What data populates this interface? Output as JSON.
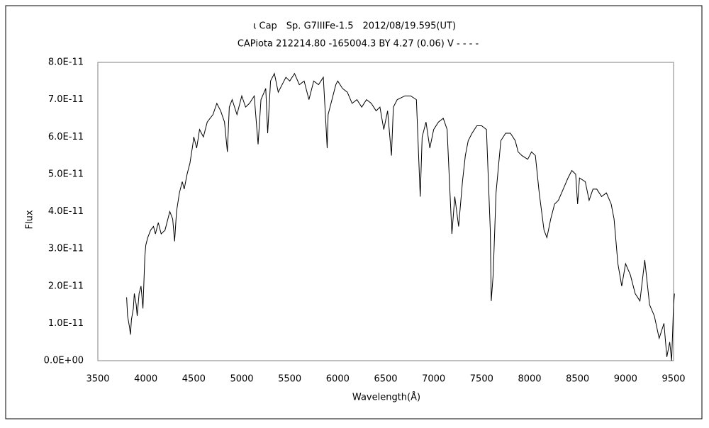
{
  "chart_data": {
    "type": "line",
    "title": "ι Cap　Sp. G7IIIFe-1.5　2012/08/19.595(UT)",
    "subtitle": "CAPiota 212214.80 -165004.3 BY 4.27 (0.06) V - - - -",
    "xlabel": "Wavelength(Å)",
    "ylabel": "Flux",
    "color": "#000000",
    "grid": false,
    "xlim": [
      3500,
      9500
    ],
    "xticks": [
      3500,
      4000,
      4500,
      5000,
      5500,
      6000,
      6500,
      7000,
      7500,
      8000,
      8500,
      9000,
      9500
    ],
    "ylim": [
      0,
      8e-11
    ],
    "yticks": [
      {
        "value": 0,
        "label": "0.0E+00"
      },
      {
        "value": 1e-11,
        "label": "1.0E-11"
      },
      {
        "value": 2e-11,
        "label": "2.0E-11"
      },
      {
        "value": 3e-11,
        "label": "3.0E-11"
      },
      {
        "value": 4e-11,
        "label": "4.0E-11"
      },
      {
        "value": 5e-11,
        "label": "5.0E-11"
      },
      {
        "value": 6e-11,
        "label": "6.0E-11"
      },
      {
        "value": 7e-11,
        "label": "7.0E-11"
      },
      {
        "value": 8e-11,
        "label": "8.0E-11"
      }
    ],
    "x": [
      3800,
      3810,
      3830,
      3840,
      3850,
      3870,
      3880,
      3900,
      3910,
      3930,
      3950,
      3970,
      3990,
      4000,
      4020,
      4050,
      4080,
      4100,
      4130,
      4160,
      4200,
      4250,
      4280,
      4300,
      4320,
      4350,
      4380,
      4400,
      4430,
      4460,
      4490,
      4500,
      4530,
      4560,
      4600,
      4640,
      4700,
      4740,
      4780,
      4820,
      4850,
      4870,
      4900,
      4950,
      5000,
      5040,
      5080,
      5130,
      5170,
      5200,
      5250,
      5270,
      5300,
      5340,
      5380,
      5420,
      5460,
      5500,
      5550,
      5600,
      5650,
      5700,
      5750,
      5800,
      5850,
      5880,
      5890,
      5900,
      5940,
      5980,
      6000,
      6050,
      6100,
      6150,
      6200,
      6250,
      6300,
      6350,
      6400,
      6440,
      6480,
      6520,
      6560,
      6580,
      6620,
      6700,
      6760,
      6820,
      6860,
      6880,
      6920,
      6960,
      7000,
      7050,
      7100,
      7140,
      7170,
      7190,
      7220,
      7260,
      7300,
      7330,
      7360,
      7400,
      7450,
      7500,
      7550,
      7590,
      7600,
      7620,
      7650,
      7700,
      7750,
      7800,
      7850,
      7880,
      7920,
      7980,
      8020,
      8060,
      8100,
      8150,
      8180,
      8220,
      8260,
      8300,
      8350,
      8400,
      8440,
      8480,
      8500,
      8520,
      8580,
      8620,
      8660,
      8700,
      8750,
      8800,
      8850,
      8880,
      8920,
      8960,
      9000,
      9050,
      9100,
      9150,
      9200,
      9250,
      9300,
      9350,
      9400,
      9430,
      9460,
      9480,
      9500,
      9510
    ],
    "values": [
      1.7e-11,
      1.2e-11,
      9e-12,
      7e-12,
      1.1e-11,
      1.4e-11,
      1.8e-11,
      1.5e-11,
      1.2e-11,
      1.8e-11,
      2e-11,
      1.4e-11,
      2.8e-11,
      3.1e-11,
      3.3e-11,
      3.5e-11,
      3.6e-11,
      3.4e-11,
      3.7e-11,
      3.4e-11,
      3.5e-11,
      4e-11,
      3.8e-11,
      3.2e-11,
      4e-11,
      4.5e-11,
      4.8e-11,
      4.6e-11,
      5e-11,
      5.3e-11,
      5.8e-11,
      6e-11,
      5.7e-11,
      6.2e-11,
      6e-11,
      6.4e-11,
      6.6e-11,
      6.9e-11,
      6.7e-11,
      6.4e-11,
      5.6e-11,
      6.8e-11,
      7e-11,
      6.6e-11,
      7.1e-11,
      6.8e-11,
      6.9e-11,
      7.1e-11,
      5.8e-11,
      7e-11,
      7.3e-11,
      6.1e-11,
      7.5e-11,
      7.7e-11,
      7.2e-11,
      7.4e-11,
      7.6e-11,
      7.5e-11,
      7.7e-11,
      7.4e-11,
      7.5e-11,
      7e-11,
      7.5e-11,
      7.4e-11,
      7.6e-11,
      6.2e-11,
      5.7e-11,
      6.6e-11,
      7e-11,
      7.4e-11,
      7.5e-11,
      7.3e-11,
      7.2e-11,
      6.9e-11,
      7e-11,
      6.8e-11,
      7e-11,
      6.9e-11,
      6.7e-11,
      6.8e-11,
      6.2e-11,
      6.7e-11,
      5.5e-11,
      6.8e-11,
      7e-11,
      7.1e-11,
      7.1e-11,
      7e-11,
      4.4e-11,
      6e-11,
      6.4e-11,
      5.7e-11,
      6.2e-11,
      6.4e-11,
      6.5e-11,
      6.2e-11,
      4.5e-11,
      3.4e-11,
      4.4e-11,
      3.6e-11,
      4.8e-11,
      5.5e-11,
      5.9e-11,
      6.1e-11,
      6.3e-11,
      6.3e-11,
      6.2e-11,
      3.5e-11,
      1.6e-11,
      2.3e-11,
      4.5e-11,
      5.9e-11,
      6.1e-11,
      6.1e-11,
      5.9e-11,
      5.6e-11,
      5.5e-11,
      5.4e-11,
      5.6e-11,
      5.5e-11,
      4.5e-11,
      3.5e-11,
      3.3e-11,
      3.8e-11,
      4.2e-11,
      4.3e-11,
      4.6e-11,
      4.9e-11,
      5.1e-11,
      5e-11,
      4.2e-11,
      4.9e-11,
      4.8e-11,
      4.3e-11,
      4.6e-11,
      4.6e-11,
      4.4e-11,
      4.5e-11,
      4.2e-11,
      3.8e-11,
      2.6e-11,
      2e-11,
      2.6e-11,
      2.3e-11,
      1.8e-11,
      1.6e-11,
      2.7e-11,
      1.5e-11,
      1.2e-11,
      6e-12,
      1e-11,
      1e-12,
      5e-12,
      0,
      1.5e-11,
      1.8e-11
    ]
  }
}
